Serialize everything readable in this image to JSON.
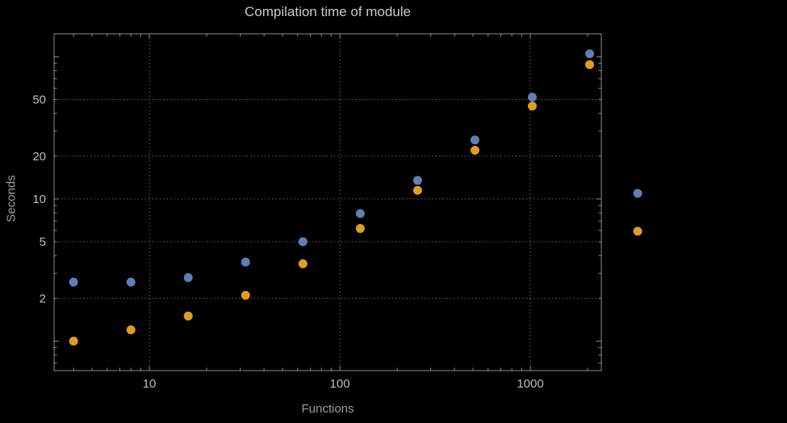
{
  "chart_data": {
    "type": "scatter",
    "title": "Compilation time of module",
    "xlabel": "Functions",
    "ylabel": "Seconds",
    "x_scale": "log",
    "y_scale": "log",
    "xlim": [
      3.16,
      2360
    ],
    "ylim": [
      0.62,
      145
    ],
    "x_ticks": [
      10,
      100,
      1000
    ],
    "y_ticks": [
      2,
      5,
      10,
      20,
      50
    ],
    "grid": "dotted major gridlines on black background",
    "x": [
      4,
      8,
      16,
      32,
      64,
      128,
      256,
      512,
      1024,
      2048
    ],
    "series": [
      {
        "name": "blue",
        "color": "#5e81b5",
        "values": [
          2.6,
          2.6,
          2.8,
          3.6,
          5.0,
          7.9,
          13.5,
          26,
          52,
          105
        ]
      },
      {
        "name": "orange",
        "color": "#e19c24",
        "values": [
          1.0,
          1.2,
          1.5,
          2.1,
          3.5,
          6.2,
          11.5,
          22,
          45,
          88
        ]
      }
    ],
    "legend": {
      "position": "outside-right",
      "markers": [
        {
          "name": "blue",
          "color": "#5e81b5"
        },
        {
          "name": "orange",
          "color": "#e19c24"
        }
      ]
    }
  },
  "colors": {
    "background": "#000000",
    "frame": "#8c8c8c",
    "grid": "#666666",
    "title": "#c7c7c7",
    "tick_label": "#bdbdbd",
    "axis_label": "#9e9e9e"
  }
}
